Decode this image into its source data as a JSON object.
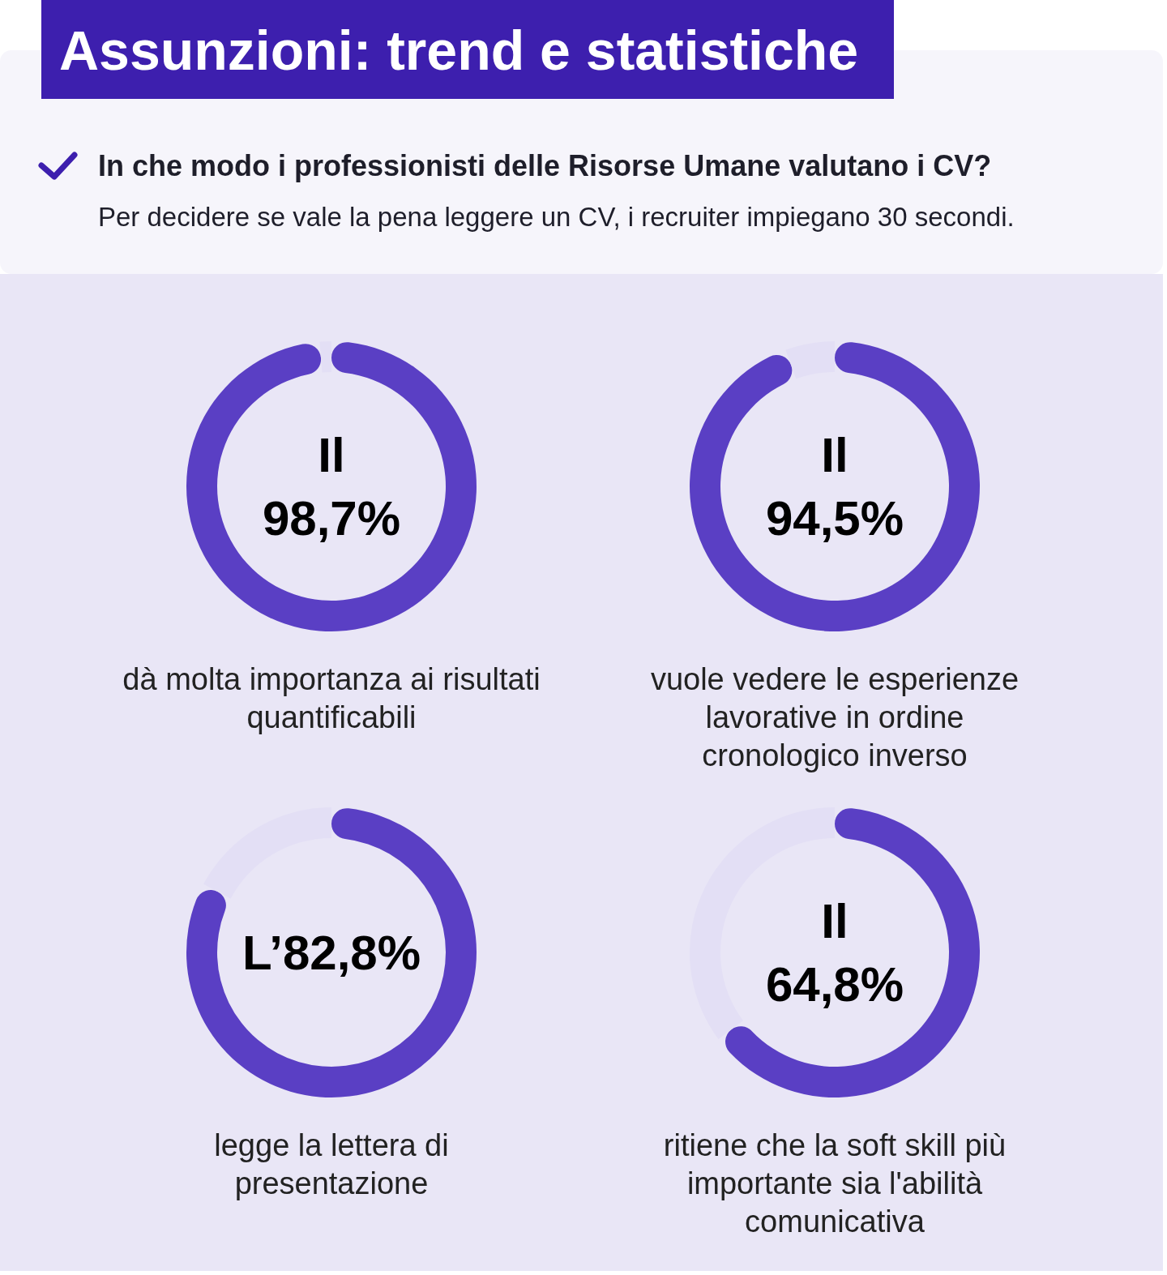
{
  "chart_data": [
    {
      "type": "other",
      "title": "Assunzioni: trend e statistiche",
      "subtitle": "In che modo i professionisti delle Risorse Umane valutano i CV?",
      "annotations": [
        "Per decidere se vale la pena leggere un CV, i recruiter impiegano 30 secondi."
      ]
    },
    {
      "type": "donut",
      "title": "dà molta importanza ai risultati quantificabili",
      "categories": [
        null,
        null
      ],
      "values": [
        98.7,
        1.3
      ],
      "colors": [
        "#5a3fc4",
        "#e3dff5"
      ],
      "value_labels": [
        "Il 98,7%",
        null
      ]
    },
    {
      "type": "donut",
      "title": "vuole vedere le esperienze lavorative in ordine cronologico inverso",
      "categories": [
        null,
        null
      ],
      "values": [
        94.5,
        5.5
      ],
      "colors": [
        "#5a3fc4",
        "#e3dff5"
      ],
      "value_labels": [
        "Il 94,5%",
        null
      ]
    },
    {
      "type": "donut",
      "title": "legge la lettera di presentazione",
      "categories": [
        null,
        null
      ],
      "values": [
        82.8,
        17.2
      ],
      "colors": [
        "#5a3fc4",
        "#e3dff5"
      ],
      "value_labels": [
        "L’82,8%",
        null
      ]
    },
    {
      "type": "donut",
      "title": "ritiene che la soft skill più importante sia l'abilità comunicativa",
      "categories": [
        null,
        null
      ],
      "values": [
        64.8,
        35.2
      ],
      "colors": [
        "#5a3fc4",
        "#e3dff5"
      ],
      "value_labels": [
        "Il 64,8%",
        null
      ]
    }
  ]
}
